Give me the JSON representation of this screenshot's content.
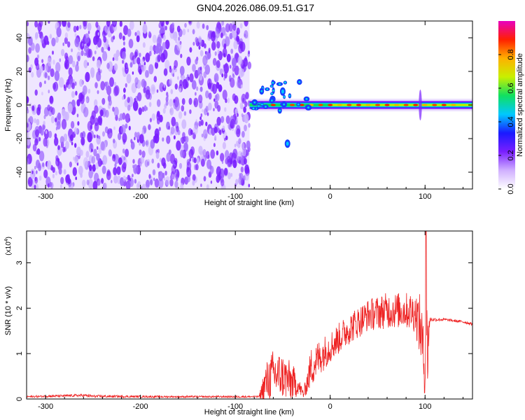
{
  "title": "GN04.2026.086.09.51.G17",
  "chart_data": [
    {
      "type": "heatmap",
      "name": "spectrogram",
      "xlabel": "Height of straight line (km)",
      "ylabel": "Frequency (Hz)",
      "xlim": [
        -320,
        150
      ],
      "ylim": [
        -50,
        50
      ],
      "xticks": [
        -300,
        -200,
        -100,
        0,
        100
      ],
      "yticks": [
        -40,
        -20,
        0,
        20,
        40
      ],
      "noise_region_x": [
        -320,
        -85
      ],
      "signal_tone": {
        "x_range": [
          -85,
          150
        ],
        "center_frequency_hz": 0,
        "peak_amplitude": 1.0,
        "features": [
          {
            "x": -50,
            "y": 8,
            "amplitude": 0.45,
            "label": "scattered blobs"
          },
          {
            "x": -45,
            "y": -23,
            "amplitude": 0.45,
            "label": "isolated blob"
          },
          {
            "x": 95,
            "y": 0,
            "amplitude": 0.3,
            "label": "vertical spike"
          }
        ]
      },
      "colorbar": {
        "label": "Normalized spectral amplitude",
        "range": [
          0,
          1
        ],
        "ticks": [
          "0.0",
          "0.2",
          "0.4",
          "0.6",
          "0.8"
        ],
        "colors": [
          "#ffffff",
          "#d0b0ff",
          "#7a1fff",
          "#1a1aff",
          "#00c8ff",
          "#10e060",
          "#c8f000",
          "#ffb000",
          "#ff2000",
          "#e800c0"
        ]
      }
    },
    {
      "type": "line",
      "name": "snr",
      "xlabel": "Height of straight line (km)",
      "ylabel": "SNR (10 * v/v)",
      "scale_label": "(x10",
      "scale_exp": "4",
      "xlim": [
        -320,
        150
      ],
      "ylim": [
        0,
        3.7
      ],
      "xticks": [
        -300,
        -200,
        -100,
        0,
        100
      ],
      "yticks": [
        0,
        1,
        2,
        3
      ],
      "color": "#ee2222",
      "envelope_x": [
        -320,
        -260,
        -250,
        -180,
        -95,
        -90,
        -75,
        -68,
        -60,
        -50,
        -40,
        -34,
        -28,
        -20,
        -10,
        0,
        20,
        40,
        60,
        80,
        90,
        96,
        100,
        102,
        105,
        120,
        140,
        150
      ],
      "envelope_y": [
        0.05,
        0.08,
        0.06,
        0.05,
        0.05,
        0.05,
        0.05,
        0.35,
        0.55,
        0.5,
        0.35,
        0.3,
        0.1,
        0.7,
        0.95,
        1.15,
        1.55,
        1.85,
        1.95,
        1.95,
        1.9,
        1.5,
        0.5,
        1.0,
        1.75,
        1.75,
        1.7,
        1.65
      ],
      "noise_amplitude": [
        0.02,
        0.03,
        0.03,
        0.02,
        0.02,
        0.02,
        0.02,
        0.45,
        0.55,
        0.5,
        0.45,
        0.2,
        0.1,
        0.45,
        0.4,
        0.35,
        0.35,
        0.35,
        0.4,
        0.4,
        0.45,
        0.8,
        0.5,
        1.3,
        0.05,
        0.03,
        0.03,
        0.03
      ],
      "peak": {
        "x": 101,
        "y": 3.7
      }
    }
  ]
}
